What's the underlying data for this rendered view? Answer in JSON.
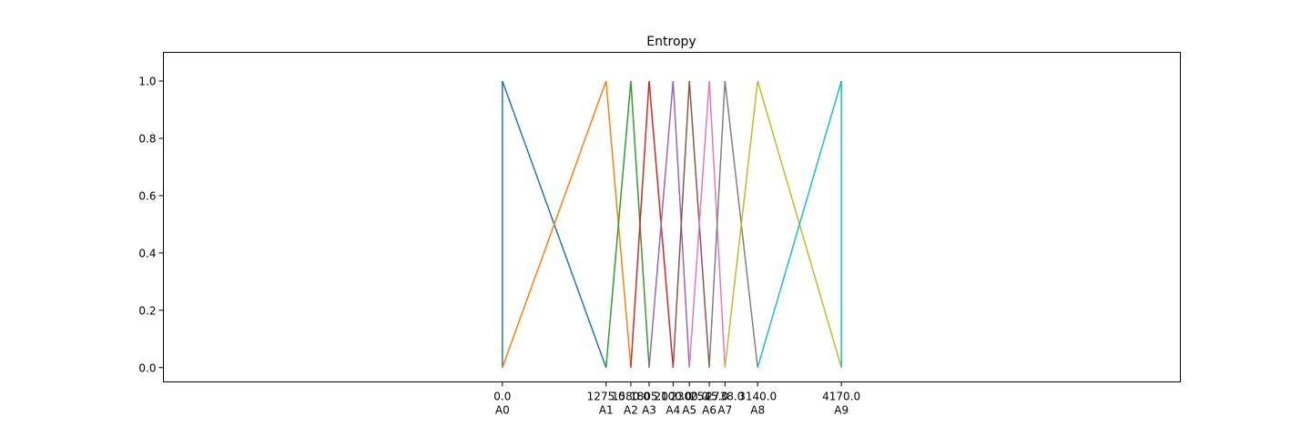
{
  "chart_data": {
    "type": "line",
    "title": "Entropy",
    "xlabel": "",
    "ylabel": "",
    "xlim": [
      -4170.0,
      8340.0
    ],
    "ylim": [
      -0.05,
      1.1
    ],
    "grid": false,
    "legend": "none",
    "y_ticks": [
      {
        "value": 0.0,
        "label": "0.0"
      },
      {
        "value": 0.2,
        "label": "0.2"
      },
      {
        "value": 0.4,
        "label": "0.4"
      },
      {
        "value": 0.6,
        "label": "0.6"
      },
      {
        "value": 0.8,
        "label": "0.8"
      },
      {
        "value": 1.0,
        "label": "1.0"
      }
    ],
    "x_ticks": [
      {
        "value": 0.0,
        "label": "0.0",
        "sublabel": "A0"
      },
      {
        "value": 1275.0,
        "label": "1275.0",
        "sublabel": "A1"
      },
      {
        "value": 1580.0,
        "label": "1580.0",
        "sublabel": "A2"
      },
      {
        "value": 1805.0,
        "label": "1805.0",
        "sublabel": "A3"
      },
      {
        "value": 2100.0,
        "label": "2100.0",
        "sublabel": "A4"
      },
      {
        "value": 2300.0,
        "label": "2300.0",
        "sublabel": "A5"
      },
      {
        "value": 2545.0,
        "label": "2545.0",
        "sublabel": "A6"
      },
      {
        "value": 2738.0,
        "label": "2738.0",
        "sublabel": "A7"
      },
      {
        "value": 3140.0,
        "label": "3140.0",
        "sublabel": "A8"
      },
      {
        "value": 4170.0,
        "label": "4170.0",
        "sublabel": "A9"
      }
    ],
    "series": [
      {
        "color": "#1f77b4",
        "x": [
          0.0,
          0.0,
          1275.0
        ],
        "y": [
          0.0,
          1.0,
          0.0
        ]
      },
      {
        "color": "#ff7f0e",
        "x": [
          0.0,
          1275.0,
          1580.0
        ],
        "y": [
          0.0,
          1.0,
          0.0
        ]
      },
      {
        "color": "#2ca02c",
        "x": [
          1275.0,
          1580.0,
          1805.0
        ],
        "y": [
          0.0,
          1.0,
          0.0
        ]
      },
      {
        "color": "#d62728",
        "x": [
          1580.0,
          1805.0,
          2100.0
        ],
        "y": [
          0.0,
          1.0,
          0.0
        ]
      },
      {
        "color": "#9467bd",
        "x": [
          1805.0,
          2100.0,
          2300.0
        ],
        "y": [
          0.0,
          1.0,
          0.0
        ]
      },
      {
        "color": "#8c564b",
        "x": [
          2100.0,
          2300.0,
          2545.0
        ],
        "y": [
          0.0,
          1.0,
          0.0
        ]
      },
      {
        "color": "#e377c2",
        "x": [
          2300.0,
          2545.0,
          2738.0
        ],
        "y": [
          0.0,
          1.0,
          0.0
        ]
      },
      {
        "color": "#7f7f7f",
        "x": [
          2545.0,
          2738.0,
          3140.0
        ],
        "y": [
          0.0,
          1.0,
          0.0
        ]
      },
      {
        "color": "#bcbd22",
        "x": [
          2738.0,
          3140.0,
          4170.0
        ],
        "y": [
          0.0,
          1.0,
          0.0
        ]
      },
      {
        "color": "#17becf",
        "x": [
          3140.0,
          4170.0,
          4170.0
        ],
        "y": [
          0.0,
          1.0,
          0.0
        ]
      }
    ]
  }
}
